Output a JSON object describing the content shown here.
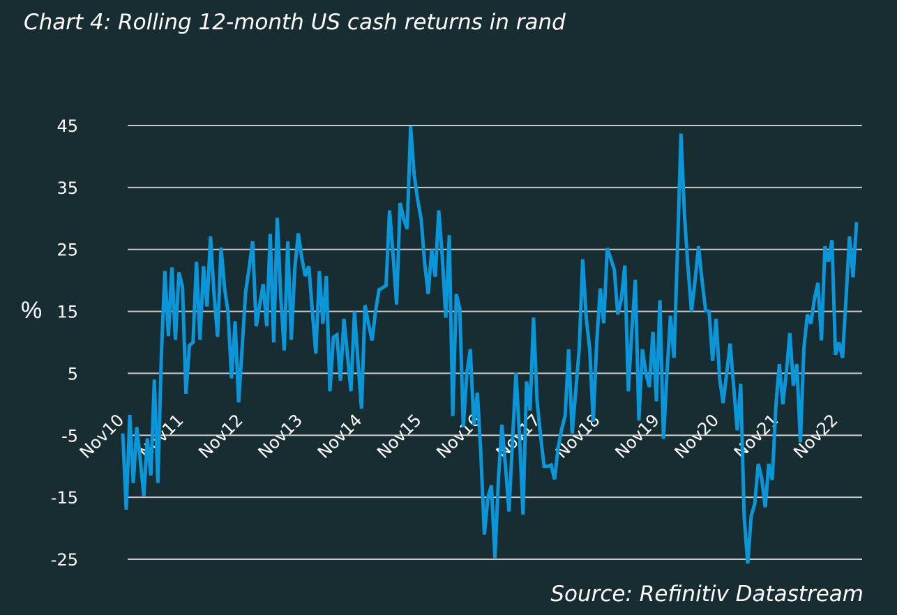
{
  "title": "Chart 4: Rolling 12-month US cash returns in rand",
  "source": "Source: Refinitiv Datastream",
  "colors": {
    "background": "#172d31",
    "line": "#0a96d8",
    "grid": "#c9c9c9",
    "text": "#ffffff"
  },
  "chart_data": {
    "type": "line",
    "title": "Chart 4: Rolling 12-month US cash returns in rand",
    "xlabel": "",
    "ylabel": "%",
    "ylim": [
      -25,
      45
    ],
    "yticks": [
      45,
      35,
      25,
      15,
      5,
      -5,
      -15,
      -25
    ],
    "x_range": [
      "2010-11",
      "2023-03"
    ],
    "x_tick_labels": [
      "Nov10",
      "Nov11",
      "Nov12",
      "Nov13",
      "Nov14",
      "Nov15",
      "Nov16",
      "Nov17",
      "Nov18",
      "Nov19",
      "Nov20",
      "Nov21",
      "Nov22"
    ],
    "grid": true,
    "legend": "none",
    "series": [
      {
        "values": [
          -4.7,
          -17,
          -1.7,
          -12.7,
          -3.7,
          -9.1,
          -14.8,
          -5.5,
          -11.5,
          4,
          -12.7,
          8.2,
          21.5,
          11,
          22.1,
          10.4,
          21.3,
          19,
          1.7,
          9.5,
          10,
          23,
          10.4,
          22.3,
          15.8,
          27.1,
          17.8,
          10.9,
          25.3,
          18.7,
          14.8,
          4.2,
          13.4,
          0.3,
          9,
          18.2,
          22,
          26.3,
          12.6,
          16,
          19.4,
          12.6,
          27.5,
          10,
          30.1,
          17.4,
          8.7,
          26.3,
          10.4,
          21.9,
          27.6,
          23.6,
          20.7,
          22.3,
          15,
          8.2,
          21.5,
          13,
          20.7,
          2.1,
          10.8,
          11.2,
          3.8,
          13.8,
          8,
          2.1,
          15,
          7,
          -0.7,
          16,
          13,
          10.3,
          15,
          18.5,
          18.8,
          19.2,
          31.3,
          24,
          16.1,
          32.5,
          30,
          28.3,
          44.9,
          37,
          33,
          29.9,
          22.7,
          17.8,
          25,
          20.6,
          31.3,
          24,
          14,
          27.3,
          -1.9,
          17.8,
          15.4,
          -3.7,
          5,
          8.9,
          -3.3,
          1.9,
          -8,
          -21,
          -15,
          -13.1,
          -24.8,
          -12,
          -3.3,
          -10,
          -17.3,
          -6,
          5.1,
          -5,
          -17.8,
          3.7,
          -1,
          14,
          0.5,
          -5,
          -10,
          -10,
          -9.8,
          -12.1,
          -7,
          -4,
          -1.9,
          8.9,
          -4.7,
          2,
          8.9,
          23.4,
          14,
          8.9,
          -2.8,
          10,
          18.7,
          13.1,
          25.2,
          23.5,
          21.7,
          14.5,
          17,
          22.4,
          2.1,
          12,
          20.1,
          -2.6,
          8.9,
          5,
          2.8,
          11.7,
          0.5,
          16.8,
          -5.6,
          5,
          14.3,
          7.5,
          25,
          43.7,
          30.4,
          22,
          15,
          20,
          25.5,
          20,
          15.2,
          15,
          7,
          13.8,
          4.2,
          0.2,
          5,
          9.8,
          3,
          -4.2,
          3.3,
          -18.2,
          -25.7,
          -18,
          -16.1,
          -9.6,
          -12,
          -16.6,
          -9.6,
          -12.2,
          -0.5,
          6.5,
          0,
          5,
          11.5,
          3,
          6.5,
          -6.1,
          9,
          14.5,
          13,
          17,
          19.6,
          10.3,
          25.5,
          23,
          26.5,
          8,
          10,
          7.5,
          17,
          27.1,
          20.5,
          29.4
        ]
      }
    ]
  }
}
